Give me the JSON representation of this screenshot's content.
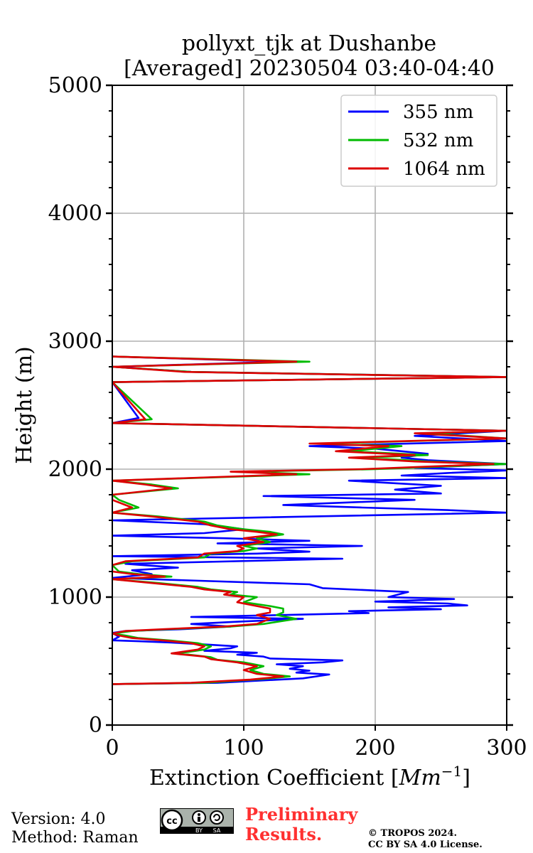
{
  "chart_data": {
    "type": "line",
    "title_line1": "pollyxt_tjk at Dushanbe",
    "title_line2": "[Averaged] 20230504 03:40-04:40",
    "xlabel_text": "Extinction Coefficient [",
    "xlabel_unit": "Mm",
    "xlabel_exp": "−1",
    "xlabel_close": "]",
    "ylabel": "Height (m)",
    "xlim": [
      0,
      300
    ],
    "ylim": [
      0,
      5000
    ],
    "x_ticks": [
      0,
      100,
      200,
      300
    ],
    "x_tick_labels": [
      "0",
      "100",
      "200",
      "300"
    ],
    "y_ticks": [
      0,
      1000,
      2000,
      3000,
      4000,
      5000
    ],
    "y_tick_labels": [
      "0",
      "1000",
      "2000",
      "3000",
      "4000",
      "5000"
    ],
    "y_minor_step": 200,
    "grid": true,
    "legend_position": "top-right",
    "series": [
      {
        "name": "355 nm",
        "color": "#0000ff",
        "points": [
          [
            0,
            320
          ],
          [
            80,
            330
          ],
          [
            145,
            365
          ],
          [
            165,
            395
          ],
          [
            140,
            410
          ],
          [
            150,
            425
          ],
          [
            135,
            440
          ],
          [
            145,
            460
          ],
          [
            125,
            475
          ],
          [
            160,
            490
          ],
          [
            175,
            505
          ],
          [
            120,
            520
          ],
          [
            115,
            535
          ],
          [
            95,
            550
          ],
          [
            110,
            565
          ],
          [
            70,
            580
          ],
          [
            90,
            600
          ],
          [
            95,
            615
          ],
          [
            70,
            630
          ],
          [
            45,
            645
          ],
          [
            20,
            655
          ],
          [
            0,
            662
          ],
          [
            5,
            690
          ],
          [
            0,
            720
          ],
          [
            10,
            735
          ],
          [
            55,
            750
          ],
          [
            90,
            770
          ],
          [
            60,
            790
          ],
          [
            100,
            810
          ],
          [
            145,
            830
          ],
          [
            60,
            845
          ],
          [
            130,
            860
          ],
          [
            195,
            875
          ],
          [
            180,
            890
          ],
          [
            250,
            905
          ],
          [
            210,
            920
          ],
          [
            270,
            935
          ],
          [
            255,
            950
          ],
          [
            200,
            965
          ],
          [
            260,
            985
          ],
          [
            210,
            1000
          ],
          [
            225,
            1040
          ],
          [
            160,
            1070
          ],
          [
            150,
            1100
          ],
          [
            0,
            1150
          ],
          [
            30,
            1180
          ],
          [
            15,
            1210
          ],
          [
            50,
            1230
          ],
          [
            10,
            1260
          ],
          [
            175,
            1300
          ],
          [
            0,
            1320
          ],
          [
            110,
            1340
          ],
          [
            150,
            1355
          ],
          [
            110,
            1380
          ],
          [
            190,
            1400
          ],
          [
            80,
            1420
          ],
          [
            150,
            1440
          ],
          [
            85,
            1460
          ],
          [
            0,
            1480
          ],
          [
            70,
            1500
          ],
          [
            100,
            1530
          ],
          [
            70,
            1570
          ],
          [
            0,
            1600
          ],
          [
            300,
            1660
          ],
          [
            255,
            1680
          ],
          [
            190,
            1700
          ],
          [
            130,
            1720
          ],
          [
            180,
            1740
          ],
          [
            230,
            1760
          ],
          [
            115,
            1790
          ],
          [
            250,
            1810
          ],
          [
            215,
            1840
          ],
          [
            250,
            1870
          ],
          [
            180,
            1910
          ],
          [
            300,
            1930
          ],
          [
            220,
            1950
          ],
          [
            255,
            1970
          ],
          [
            300,
            1990
          ],
          [
            230,
            2010
          ],
          [
            300,
            2040
          ],
          [
            240,
            2070
          ],
          [
            220,
            2090
          ],
          [
            240,
            2120
          ],
          [
            200,
            2160
          ],
          [
            150,
            2180
          ],
          [
            300,
            2220
          ],
          [
            230,
            2260
          ],
          [
            300,
            2300
          ],
          [
            0,
            2360
          ],
          [
            20,
            2400
          ],
          [
            0,
            2680
          ],
          [
            300,
            2720
          ],
          [
            60,
            2760
          ],
          [
            0,
            2800
          ],
          [
            130,
            2840
          ],
          [
            0,
            2880
          ]
        ]
      },
      {
        "name": "532 nm",
        "color": "#00bb00",
        "points": [
          [
            0,
            320
          ],
          [
            70,
            330
          ],
          [
            115,
            360
          ],
          [
            135,
            380
          ],
          [
            115,
            400
          ],
          [
            105,
            430
          ],
          [
            115,
            460
          ],
          [
            100,
            490
          ],
          [
            80,
            510
          ],
          [
            75,
            530
          ],
          [
            50,
            560
          ],
          [
            70,
            590
          ],
          [
            75,
            615
          ],
          [
            65,
            640
          ],
          [
            45,
            660
          ],
          [
            20,
            680
          ],
          [
            10,
            700
          ],
          [
            0,
            715
          ],
          [
            15,
            735
          ],
          [
            45,
            750
          ],
          [
            90,
            770
          ],
          [
            115,
            790
          ],
          [
            140,
            830
          ],
          [
            125,
            860
          ],
          [
            130,
            880
          ],
          [
            130,
            910
          ],
          [
            120,
            930
          ],
          [
            100,
            960
          ],
          [
            110,
            1000
          ],
          [
            90,
            1020
          ],
          [
            95,
            1040
          ],
          [
            75,
            1060
          ],
          [
            65,
            1080
          ],
          [
            35,
            1110
          ],
          [
            0,
            1140
          ],
          [
            45,
            1160
          ],
          [
            20,
            1180
          ],
          [
            5,
            1200
          ],
          [
            0,
            1250
          ],
          [
            15,
            1280
          ],
          [
            70,
            1310
          ],
          [
            75,
            1340
          ],
          [
            100,
            1360
          ],
          [
            110,
            1380
          ],
          [
            100,
            1400
          ],
          [
            120,
            1430
          ],
          [
            110,
            1460
          ],
          [
            130,
            1490
          ],
          [
            120,
            1510
          ],
          [
            100,
            1530
          ],
          [
            80,
            1560
          ],
          [
            70,
            1590
          ],
          [
            35,
            1630
          ],
          [
            0,
            1660
          ],
          [
            20,
            1700
          ],
          [
            5,
            1760
          ],
          [
            0,
            1800
          ],
          [
            50,
            1850
          ],
          [
            30,
            1880
          ],
          [
            0,
            1910
          ],
          [
            150,
            1960
          ],
          [
            100,
            1980
          ],
          [
            200,
            2000
          ],
          [
            300,
            2040
          ],
          [
            240,
            2060
          ],
          [
            190,
            2090
          ],
          [
            240,
            2110
          ],
          [
            180,
            2140
          ],
          [
            220,
            2180
          ],
          [
            160,
            2200
          ],
          [
            300,
            2240
          ],
          [
            240,
            2280
          ],
          [
            300,
            2300
          ],
          [
            0,
            2360
          ],
          [
            30,
            2390
          ],
          [
            0,
            2680
          ],
          [
            300,
            2720
          ],
          [
            60,
            2760
          ],
          [
            0,
            2800
          ],
          [
            150,
            2840
          ],
          [
            0,
            2880
          ]
        ]
      },
      {
        "name": "1064 nm",
        "color": "#dd0000",
        "points": [
          [
            0,
            320
          ],
          [
            60,
            330
          ],
          [
            105,
            355
          ],
          [
            130,
            380
          ],
          [
            110,
            400
          ],
          [
            100,
            430
          ],
          [
            110,
            460
          ],
          [
            95,
            490
          ],
          [
            75,
            515
          ],
          [
            70,
            535
          ],
          [
            45,
            560
          ],
          [
            65,
            590
          ],
          [
            70,
            615
          ],
          [
            60,
            640
          ],
          [
            40,
            660
          ],
          [
            15,
            680
          ],
          [
            5,
            700
          ],
          [
            0,
            715
          ],
          [
            10,
            735
          ],
          [
            40,
            750
          ],
          [
            85,
            770
          ],
          [
            110,
            790
          ],
          [
            120,
            830
          ],
          [
            110,
            860
          ],
          [
            120,
            880
          ],
          [
            120,
            910
          ],
          [
            110,
            930
          ],
          [
            95,
            960
          ],
          [
            100,
            1000
          ],
          [
            85,
            1020
          ],
          [
            90,
            1040
          ],
          [
            70,
            1060
          ],
          [
            60,
            1080
          ],
          [
            30,
            1110
          ],
          [
            0,
            1140
          ],
          [
            40,
            1160
          ],
          [
            15,
            1180
          ],
          [
            0,
            1200
          ],
          [
            0,
            1250
          ],
          [
            10,
            1280
          ],
          [
            65,
            1310
          ],
          [
            70,
            1340
          ],
          [
            95,
            1360
          ],
          [
            100,
            1380
          ],
          [
            95,
            1400
          ],
          [
            115,
            1430
          ],
          [
            100,
            1460
          ],
          [
            125,
            1490
          ],
          [
            110,
            1510
          ],
          [
            90,
            1530
          ],
          [
            75,
            1560
          ],
          [
            65,
            1590
          ],
          [
            30,
            1630
          ],
          [
            0,
            1660
          ],
          [
            15,
            1700
          ],
          [
            0,
            1760
          ],
          [
            0,
            1800
          ],
          [
            45,
            1850
          ],
          [
            25,
            1880
          ],
          [
            0,
            1910
          ],
          [
            140,
            1960
          ],
          [
            90,
            1980
          ],
          [
            190,
            2000
          ],
          [
            290,
            2040
          ],
          [
            230,
            2060
          ],
          [
            180,
            2090
          ],
          [
            230,
            2110
          ],
          [
            170,
            2140
          ],
          [
            210,
            2180
          ],
          [
            150,
            2200
          ],
          [
            300,
            2240
          ],
          [
            230,
            2280
          ],
          [
            300,
            2300
          ],
          [
            0,
            2360
          ],
          [
            25,
            2390
          ],
          [
            0,
            2680
          ],
          [
            300,
            2720
          ],
          [
            55,
            2760
          ],
          [
            0,
            2800
          ],
          [
            140,
            2840
          ],
          [
            0,
            2880
          ]
        ]
      }
    ]
  },
  "footer": {
    "version": "Version: 4.0",
    "method": "Method: Raman",
    "preliminary_line1": "Preliminary",
    "preliminary_line2": "Results.",
    "copyright_line1": "© TROPOS 2024.",
    "copyright_line2": "CC BY SA 4.0 License.",
    "license_badge": "cc-by-sa-badge"
  }
}
